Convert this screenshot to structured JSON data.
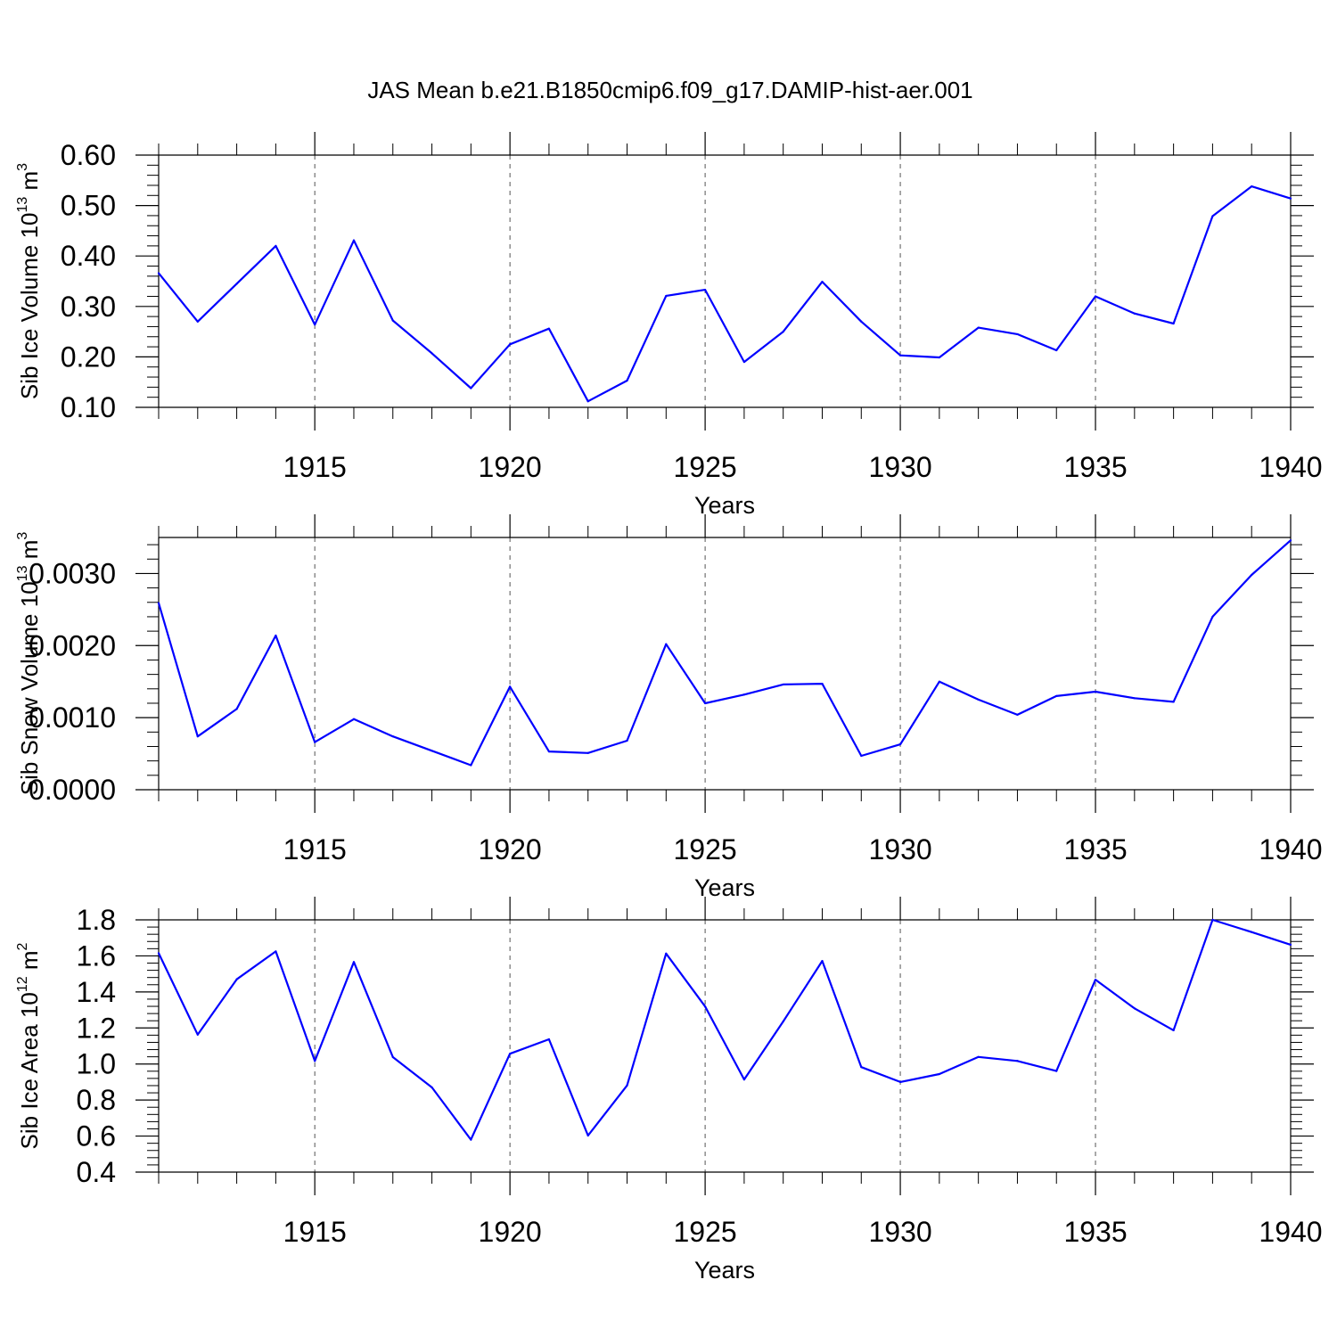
{
  "figure_title": "JAS Mean b.e21.B1850cmip6.f09_g17.DAMIP-hist-aer.001",
  "colors": {
    "line": "#0000ff",
    "axis": "#000000",
    "grid": "#555555"
  },
  "chart_data": [
    {
      "type": "line",
      "name": "sib-ice-volume",
      "ylabel_parts": [
        "Sib Ice Volume 10",
        "13",
        " m",
        "3"
      ],
      "xlabel": "Years",
      "xlim": [
        1911,
        1940
      ],
      "ylim": [
        0.1,
        0.6
      ],
      "yticks": [
        0.1,
        0.2,
        0.3,
        0.4,
        0.5,
        0.6
      ],
      "ytick_labels": [
        "0.10",
        "0.20",
        "0.30",
        "0.40",
        "0.50",
        "0.60"
      ],
      "xticks": [
        1915,
        1920,
        1925,
        1930,
        1935,
        1940
      ],
      "xtick_labels": [
        "1915",
        "1920",
        "1925",
        "1930",
        "1935",
        "1940"
      ],
      "x": [
        1911,
        1912,
        1913,
        1914,
        1915,
        1916,
        1917,
        1918,
        1919,
        1920,
        1921,
        1922,
        1923,
        1924,
        1925,
        1926,
        1927,
        1928,
        1929,
        1930,
        1931,
        1932,
        1933,
        1934,
        1935,
        1936,
        1937,
        1938,
        1939,
        1940
      ],
      "values": [
        0.366,
        0.27,
        0.345,
        0.42,
        0.264,
        0.431,
        0.272,
        0.207,
        0.138,
        0.225,
        0.256,
        0.112,
        0.153,
        0.321,
        0.333,
        0.19,
        0.25,
        0.349,
        0.27,
        0.203,
        0.199,
        0.258,
        0.245,
        0.213,
        0.32,
        0.286,
        0.266,
        0.479,
        0.538,
        0.514
      ]
    },
    {
      "type": "line",
      "name": "sib-snow-volume",
      "ylabel_parts": [
        "Sib Snow Volume 10",
        "13",
        " m",
        "3"
      ],
      "xlabel": "Years",
      "xlim": [
        1911,
        1940
      ],
      "ylim": [
        0.0,
        0.0035
      ],
      "yticks": [
        0.0,
        0.001,
        0.002,
        0.003
      ],
      "ytick_labels": [
        "0.0000",
        "0.0010",
        "0.0020",
        "0.0030"
      ],
      "xticks": [
        1915,
        1920,
        1925,
        1930,
        1935,
        1940
      ],
      "xtick_labels": [
        "1915",
        "1920",
        "1925",
        "1930",
        "1935",
        "1940"
      ],
      "x": [
        1911,
        1912,
        1913,
        1914,
        1915,
        1916,
        1917,
        1918,
        1919,
        1920,
        1921,
        1922,
        1923,
        1924,
        1925,
        1926,
        1927,
        1928,
        1929,
        1930,
        1931,
        1932,
        1933,
        1934,
        1935,
        1936,
        1937,
        1938,
        1939,
        1940
      ],
      "values": [
        0.00259,
        0.00074,
        0.00112,
        0.00214,
        0.00066,
        0.00098,
        0.00074,
        0.00054,
        0.00034,
        0.00143,
        0.00053,
        0.00051,
        0.00068,
        0.00202,
        0.0012,
        0.00132,
        0.00146,
        0.00147,
        0.00047,
        0.00063,
        0.0015,
        0.00125,
        0.00104,
        0.0013,
        0.00136,
        0.00127,
        0.00122,
        0.0024,
        0.00298,
        0.00346
      ]
    },
    {
      "type": "line",
      "name": "sib-ice-area",
      "ylabel_parts": [
        "Sib Ice Area 10",
        "12",
        " m",
        "2"
      ],
      "xlabel": "Years",
      "xlim": [
        1911,
        1940
      ],
      "ylim": [
        0.4,
        1.8
      ],
      "yticks": [
        0.4,
        0.6,
        0.8,
        1.0,
        1.2,
        1.4,
        1.6,
        1.8
      ],
      "ytick_labels": [
        "0.4",
        "0.6",
        "0.8",
        "1.0",
        "1.2",
        "1.4",
        "1.6",
        "1.8"
      ],
      "xticks": [
        1915,
        1920,
        1925,
        1930,
        1935,
        1940
      ],
      "xtick_labels": [
        "1915",
        "1920",
        "1925",
        "1930",
        "1935",
        "1940"
      ],
      "x": [
        1911,
        1912,
        1913,
        1914,
        1915,
        1916,
        1917,
        1918,
        1919,
        1920,
        1921,
        1922,
        1923,
        1924,
        1925,
        1926,
        1927,
        1928,
        1929,
        1930,
        1931,
        1932,
        1933,
        1934,
        1935,
        1936,
        1937,
        1938,
        1939,
        1940
      ],
      "values": [
        1.615,
        1.163,
        1.47,
        1.625,
        1.017,
        1.566,
        1.038,
        0.87,
        0.58,
        1.057,
        1.137,
        0.603,
        0.881,
        1.613,
        1.319,
        0.914,
        1.236,
        1.572,
        0.983,
        0.9,
        0.944,
        1.039,
        1.017,
        0.961,
        1.468,
        1.309,
        1.187,
        1.8,
        1.732,
        1.662
      ]
    }
  ]
}
